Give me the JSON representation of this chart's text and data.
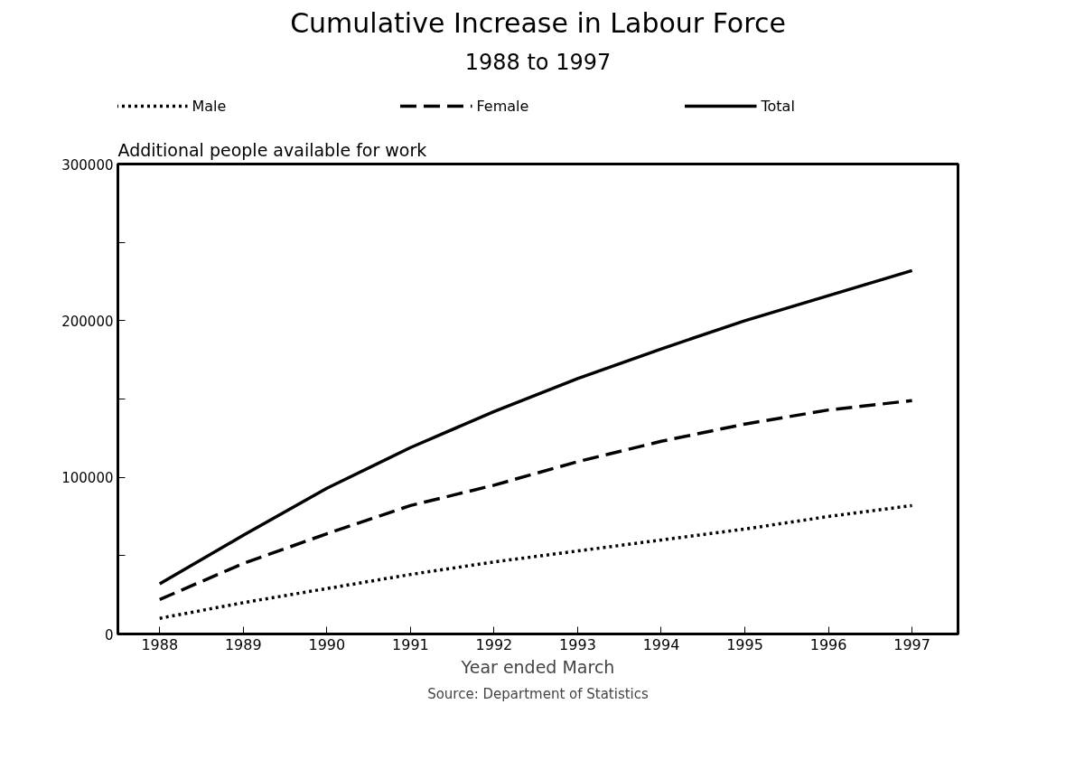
{
  "chart_data": {
    "type": "line",
    "title": "Cumulative Increase in Labour Force",
    "subtitle": "1988 to 1997",
    "xlabel": "Year ended March",
    "ylabel": "Additional people available for work",
    "annotations": [
      "Source: Department of Statistics"
    ],
    "x": [
      1988,
      1989,
      1990,
      1991,
      1992,
      1993,
      1994,
      1995,
      1996,
      1997
    ],
    "series": [
      {
        "name": "Male",
        "color": "#000000",
        "line_style": "dotted",
        "values": [
          10000,
          20000,
          29000,
          38000,
          46000,
          53000,
          60000,
          67000,
          75000,
          82000
        ]
      },
      {
        "name": "Female",
        "color": "#000000",
        "line_style": "dashed",
        "values": [
          22000,
          45000,
          64000,
          82000,
          95000,
          110000,
          123000,
          134000,
          143000,
          149000
        ]
      },
      {
        "name": "Total",
        "color": "#000000",
        "line_style": "solid",
        "values": [
          32000,
          63000,
          93000,
          119000,
          142000,
          163000,
          182000,
          200000,
          216000,
          232000
        ]
      }
    ],
    "xlim": [
      1987.5,
      1997.55
    ],
    "xticks": [
      1988,
      1989,
      1990,
      1991,
      1992,
      1993,
      1994,
      1995,
      1996,
      1997
    ],
    "ylim": [
      0,
      300000
    ],
    "yticks": [
      0,
      {
        "value": 50000,
        "label": null
      },
      100000,
      {
        "value": 150000,
        "label": null
      },
      200000,
      {
        "value": 250000,
        "label": null
      },
      300000
    ],
    "grid": false,
    "legend": "top",
    "marker": "none"
  }
}
